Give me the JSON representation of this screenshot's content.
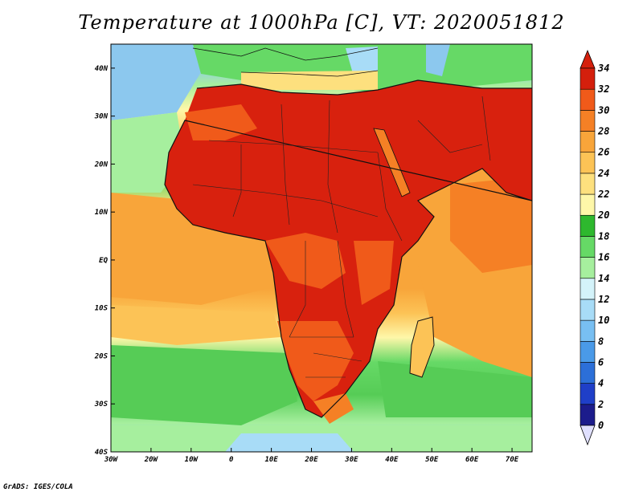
{
  "title": "Temperature at 1000hPa [C], VT: 2020051812",
  "credit": "GrADS: IGES/COLA",
  "map": {
    "lon_range": [
      -30,
      75
    ],
    "lat_range": [
      -40,
      45
    ],
    "x_ticks": [
      {
        "lon": -30,
        "label": "30W"
      },
      {
        "lon": -20,
        "label": "20W"
      },
      {
        "lon": -10,
        "label": "10W"
      },
      {
        "lon": 0,
        "label": "0"
      },
      {
        "lon": 10,
        "label": "10E"
      },
      {
        "lon": 20,
        "label": "20E"
      },
      {
        "lon": 30,
        "label": "30E"
      },
      {
        "lon": 40,
        "label": "40E"
      },
      {
        "lon": 50,
        "label": "50E"
      },
      {
        "lon": 60,
        "label": "60E"
      },
      {
        "lon": 70,
        "label": "70E"
      }
    ],
    "y_ticks": [
      {
        "lat": 40,
        "label": "40N"
      },
      {
        "lat": 30,
        "label": "30N"
      },
      {
        "lat": 20,
        "label": "20N"
      },
      {
        "lat": 10,
        "label": "10N"
      },
      {
        "lat": 0,
        "label": "EQ"
      },
      {
        "lat": -10,
        "label": "10S"
      },
      {
        "lat": -20,
        "label": "20S"
      },
      {
        "lat": -30,
        "label": "30S"
      },
      {
        "lat": -40,
        "label": "40S"
      }
    ]
  },
  "colorbar": {
    "levels": [
      "0",
      "2",
      "4",
      "6",
      "8",
      "10",
      "12",
      "14",
      "16",
      "18",
      "20",
      "22",
      "24",
      "26",
      "28",
      "30",
      "32",
      "34"
    ],
    "colors": [
      "#1c1c8c",
      "#1f3fc8",
      "#2c6fd8",
      "#4a9ae8",
      "#78bff2",
      "#a8dcf7",
      "#d4f3fa",
      "#a6ef9e",
      "#66d966",
      "#2eb82e",
      "#fef7a9",
      "#fde07e",
      "#fcc356",
      "#f8a53a",
      "#f58025",
      "#f05a1a",
      "#d41f0c"
    ],
    "under_color": "#e0e0ff",
    "over_color": "#d41f0c"
  },
  "legend_colors": {
    "ocean_cool": "#8cc8ee",
    "ocean_green": "#56cc56",
    "ocean_warm": "#f8a84a",
    "land_hot": "#d8210e"
  }
}
